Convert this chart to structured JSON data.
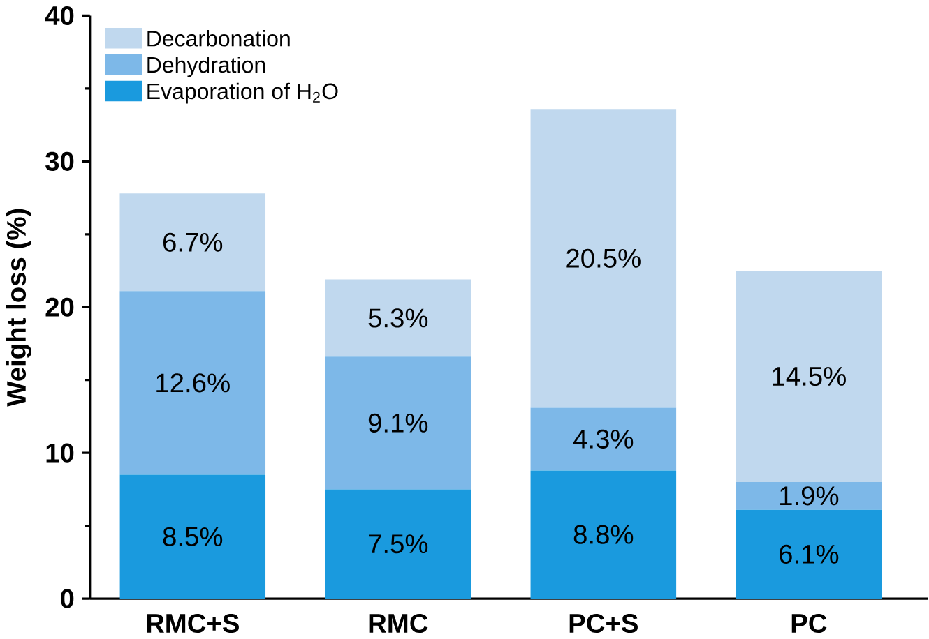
{
  "chart_data": {
    "type": "bar",
    "stacked": true,
    "ylabel": "Weight loss (%)",
    "categories": [
      "RMC+S",
      "RMC",
      "PC+S",
      "PC"
    ],
    "series": [
      {
        "name": "Evaporation of H$_{2}$O",
        "color": "#1a9ade",
        "values": [
          8.5,
          7.5,
          8.8,
          6.1
        ],
        "value_labels": [
          "8.5%",
          "7.5%",
          "8.8%",
          "6.1%"
        ]
      },
      {
        "name": "Dehydration",
        "color": "#7db8e8",
        "values": [
          12.6,
          9.1,
          4.3,
          1.9
        ],
        "value_labels": [
          "12.6%",
          "9.1%",
          "4.3%",
          "1.9%"
        ]
      },
      {
        "name": "Decarbonation",
        "color": "#c0d8ee",
        "values": [
          6.7,
          5.3,
          20.5,
          14.5
        ],
        "value_labels": [
          "6.7%",
          "5.3%",
          "20.5%",
          "14.5%"
        ]
      }
    ],
    "ylim": [
      0,
      40
    ],
    "yticks": [
      0,
      10,
      20,
      30,
      40
    ],
    "grid": false,
    "legend": "top left"
  }
}
